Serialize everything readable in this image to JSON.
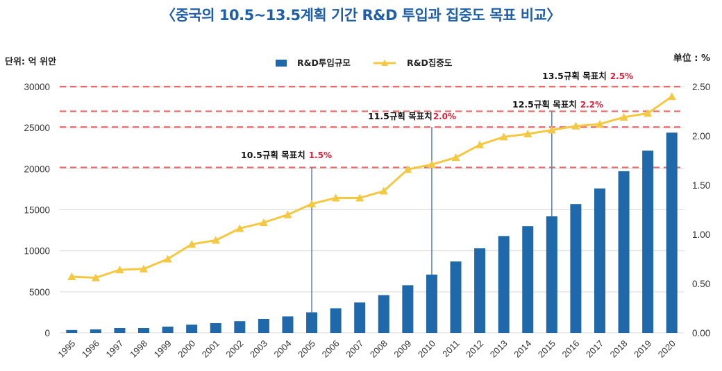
{
  "chart_data": {
    "type": "bar+line",
    "title": "〈중국의 10.5~13.5계획 기간 R&D 투입과 집중도 목표 비교〉",
    "categories": [
      "1995",
      "1996",
      "1997",
      "1998",
      "1999",
      "2000",
      "2001",
      "2002",
      "2003",
      "2004",
      "2005",
      "2006",
      "2007",
      "2008",
      "2009",
      "2010",
      "2011",
      "2012",
      "2013",
      "2014",
      "2015",
      "2016",
      "2017",
      "2018",
      "2019",
      "2020"
    ],
    "series": [
      {
        "name": "R&D투입규모",
        "type": "bar",
        "axis": "left",
        "color": "#1f69aa",
        "values": [
          350,
          420,
          590,
          590,
          760,
          1000,
          1180,
          1420,
          1690,
          2000,
          2500,
          3000,
          3700,
          4600,
          5800,
          7100,
          8700,
          10300,
          11800,
          13000,
          14200,
          15700,
          17600,
          19700,
          22200,
          24400
        ]
      },
      {
        "name": "R&D집중도",
        "type": "line",
        "axis": "right",
        "color": "#f5c842",
        "marker": "triangle",
        "values": [
          0.57,
          0.56,
          0.64,
          0.65,
          0.75,
          0.9,
          0.94,
          1.06,
          1.12,
          1.2,
          1.31,
          1.37,
          1.37,
          1.44,
          1.66,
          1.71,
          1.78,
          1.91,
          1.99,
          2.02,
          2.06,
          2.1,
          2.12,
          2.19,
          2.23,
          2.4
        ]
      }
    ],
    "left_axis": {
      "label": "단위: 억 위안",
      "ylim": [
        0,
        30000
      ],
      "ticks": [
        "30000",
        "25000",
        "20000",
        "15000",
        "10000",
        "5000",
        "0"
      ],
      "tick_values": [
        30000,
        25000,
        20000,
        15000,
        10000,
        5000,
        0
      ]
    },
    "right_axis": {
      "label": "单位 : %",
      "ylim": [
        0,
        2.5
      ],
      "ticks": [
        "2.50",
        "2.00",
        "1.50",
        "1.00",
        "0.50",
        "0.00"
      ],
      "tick_values": [
        2.5,
        2.0,
        1.5,
        1.0,
        0.5,
        0.0
      ]
    },
    "legend": {
      "placement": "top-center",
      "items": [
        {
          "label": "R&D투입규모",
          "kind": "bar"
        },
        {
          "label": "R&D집중도",
          "kind": "line"
        }
      ]
    },
    "grid": true,
    "target_lines": [
      {
        "plan": "10.5",
        "label": "10.5규획 목표치",
        "value_label": "1.5%",
        "target": 1.5,
        "drawn_at": 1.68,
        "year": "2005"
      },
      {
        "plan": "11.5",
        "label": "11.5규획 목표치",
        "value_label": "2.0%",
        "target": 2.0,
        "drawn_at": 2.09,
        "year": "2010"
      },
      {
        "plan": "12.5",
        "label": "12.5규획 목표치",
        "value_label": "2.2%",
        "target": 2.2,
        "drawn_at": 2.25,
        "year": "2015"
      },
      {
        "plan": "13.5",
        "label": "13.5규획 목표치",
        "value_label": "2.5%",
        "target": 2.5,
        "drawn_at": 2.5,
        "year": null
      }
    ],
    "colors": {
      "bar": "#1f69aa",
      "line": "#f5c842",
      "target_line": "#ec6a6a",
      "target_value": "#e0203a",
      "title": "#1f5fa8",
      "grid": "#d9d9d9",
      "leader": "#5b7fa6"
    }
  }
}
